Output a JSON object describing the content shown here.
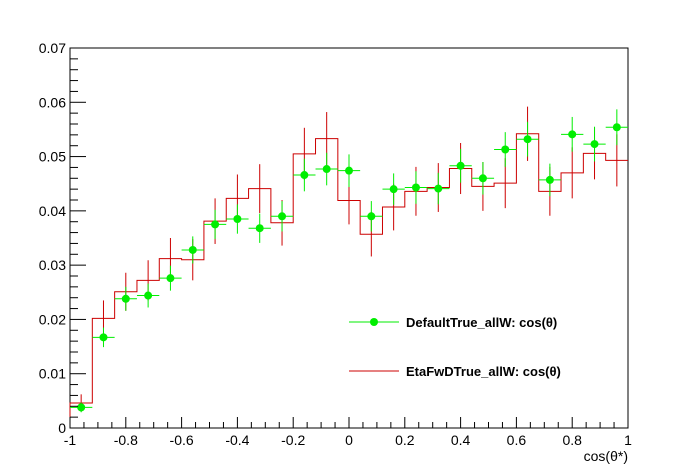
{
  "chart_data": {
    "type": "line",
    "xlabel": "cos(θ*)",
    "ylabel": "",
    "xlim": [
      -1,
      1
    ],
    "ylim": [
      0,
      0.07
    ],
    "x_ticks": [
      -1,
      -0.8,
      -0.6,
      -0.4,
      -0.2,
      0,
      0.2,
      0.4,
      0.6,
      0.8,
      1
    ],
    "x_tick_labels": [
      "-1",
      "-0.8",
      "-0.6",
      "-0.4",
      "-0.2",
      "0",
      "0.2",
      "0.4",
      "0.6",
      "0.8",
      "1"
    ],
    "y_ticks": [
      0,
      0.01,
      0.02,
      0.03,
      0.04,
      0.05,
      0.06,
      0.07
    ],
    "y_tick_labels": [
      "0",
      "0.01",
      "0.02",
      "0.03",
      "0.04",
      "0.05",
      "0.06",
      "0.07"
    ],
    "grid": false,
    "legend_position": "bottom-right",
    "bin_width": 0.08,
    "series": [
      {
        "name": "DefaultTrue_allW: cos(θ)",
        "style": "markers",
        "color": "#00ee00",
        "x": [
          -0.96,
          -0.88,
          -0.8,
          -0.72,
          -0.64,
          -0.56,
          -0.48,
          -0.4,
          -0.32,
          -0.24,
          -0.16,
          -0.08,
          0.0,
          0.08,
          0.16,
          0.24,
          0.32,
          0.4,
          0.48,
          0.56,
          0.64,
          0.72,
          0.8,
          0.88,
          0.96
        ],
        "values": [
          0.0038,
          0.0167,
          0.0238,
          0.0244,
          0.0276,
          0.0328,
          0.0375,
          0.0385,
          0.0368,
          0.039,
          0.0466,
          0.0477,
          0.0474,
          0.039,
          0.044,
          0.0443,
          0.0441,
          0.0483,
          0.046,
          0.0513,
          0.0532,
          0.0457,
          0.0541,
          0.0523,
          0.0554
        ],
        "errors": [
          0.0009,
          0.0018,
          0.0022,
          0.0022,
          0.0023,
          0.0025,
          0.0027,
          0.0027,
          0.0027,
          0.0028,
          0.003,
          0.003,
          0.003,
          0.0028,
          0.0029,
          0.003,
          0.0029,
          0.0031,
          0.003,
          0.0032,
          0.0032,
          0.003,
          0.0032,
          0.0032,
          0.0033
        ]
      },
      {
        "name": "EtaFwDTrue_allW: cos(θ)",
        "style": "step",
        "color": "#cc0000",
        "x": [
          -0.96,
          -0.88,
          -0.8,
          -0.72,
          -0.64,
          -0.56,
          -0.48,
          -0.4,
          -0.32,
          -0.24,
          -0.16,
          -0.08,
          0.0,
          0.08,
          0.16,
          0.24,
          0.32,
          0.4,
          0.48,
          0.56,
          0.64,
          0.72,
          0.8,
          0.88,
          0.96
        ],
        "values": [
          0.0046,
          0.0202,
          0.0251,
          0.0272,
          0.0312,
          0.031,
          0.0381,
          0.0423,
          0.0441,
          0.0378,
          0.0505,
          0.0533,
          0.0419,
          0.0357,
          0.0407,
          0.0436,
          0.0443,
          0.0478,
          0.0445,
          0.0451,
          0.0542,
          0.0436,
          0.047,
          0.0506,
          0.0493
        ],
        "errors": [
          0.0016,
          0.0033,
          0.0035,
          0.0037,
          0.0038,
          0.0038,
          0.0042,
          0.0044,
          0.0045,
          0.0042,
          0.0048,
          0.0049,
          0.0044,
          0.0041,
          0.0043,
          0.0045,
          0.0045,
          0.0047,
          0.0045,
          0.0046,
          0.005,
          0.0045,
          0.0047,
          0.0048,
          0.0048
        ]
      }
    ]
  }
}
